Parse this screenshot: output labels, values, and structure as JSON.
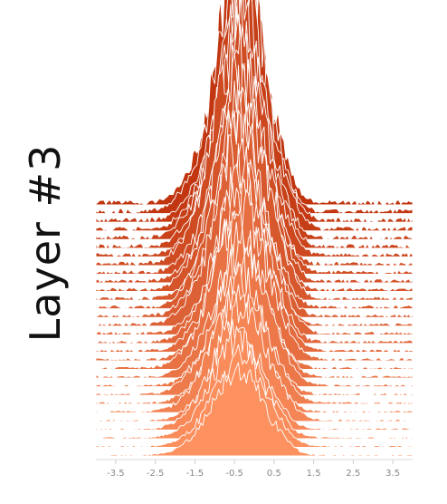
{
  "title": "Layer #3",
  "chart_data": {
    "type": "area",
    "subtype": "ridgeline",
    "x_tick_labels": [
      "-3.5",
      "-2.5",
      "-1.5",
      "-0.5",
      "0.5",
      "1.5",
      "2.5",
      "3.5"
    ],
    "x_ticks": [
      -3.5,
      -2.5,
      -1.5,
      -0.5,
      0.5,
      1.5,
      2.5,
      3.5
    ],
    "xlim": [
      -4,
      4
    ],
    "series_count": 30,
    "first_series": {
      "center": -0.35,
      "width": 0.55,
      "peak": 3.0
    },
    "last_series": {
      "center": -0.4,
      "width": 0.6,
      "peak": 1.0
    },
    "color_back": "#c0340e",
    "color_front": "#fd9260",
    "grid": false,
    "legend": "none"
  }
}
